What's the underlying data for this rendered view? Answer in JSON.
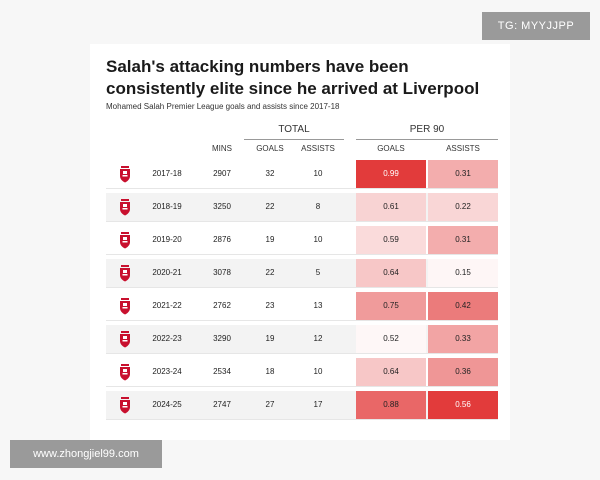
{
  "watermarks": {
    "top_right": "TG: MYYJJPP",
    "bottom_left": "www.zhongjiel99.com"
  },
  "chart_data": {
    "type": "table",
    "title": "Salah's attacking numbers have been consistently elite since he arrived at Liverpool",
    "subtitle": "Mohamed Salah Premier League goals and assists since 2017-18",
    "group_headers": {
      "total": "TOTAL",
      "per90": "PER 90"
    },
    "columns": {
      "season": "",
      "mins": "MINS",
      "goals": "GOALS",
      "assists": "ASSISTS",
      "goals_p90": "GOALS",
      "assists_p90": "ASSISTS"
    },
    "rows": [
      {
        "season": "2017-18",
        "mins": 2907,
        "goals": 32,
        "assists": 10,
        "goals_p90": "0.99",
        "assists_p90": "0.31"
      },
      {
        "season": "2018-19",
        "mins": 3250,
        "goals": 22,
        "assists": 8,
        "goals_p90": "0.61",
        "assists_p90": "0.22"
      },
      {
        "season": "2019-20",
        "mins": 2876,
        "goals": 19,
        "assists": 10,
        "goals_p90": "0.59",
        "assists_p90": "0.31"
      },
      {
        "season": "2020-21",
        "mins": 3078,
        "goals": 22,
        "assists": 5,
        "goals_p90": "0.64",
        "assists_p90": "0.15"
      },
      {
        "season": "2021-22",
        "mins": 2762,
        "goals": 23,
        "assists": 13,
        "goals_p90": "0.75",
        "assists_p90": "0.42"
      },
      {
        "season": "2022-23",
        "mins": 3290,
        "goals": 19,
        "assists": 12,
        "goals_p90": "0.52",
        "assists_p90": "0.33"
      },
      {
        "season": "2023-24",
        "mins": 2534,
        "goals": 18,
        "assists": 10,
        "goals_p90": "0.64",
        "assists_p90": "0.36"
      },
      {
        "season": "2024-25",
        "mins": 2747,
        "goals": 27,
        "assists": 17,
        "goals_p90": "0.88",
        "assists_p90": "0.56"
      }
    ],
    "heat_colors": {
      "low": "#ffffff",
      "high": "#e23b3b"
    },
    "crest_color": "#c8102e"
  }
}
